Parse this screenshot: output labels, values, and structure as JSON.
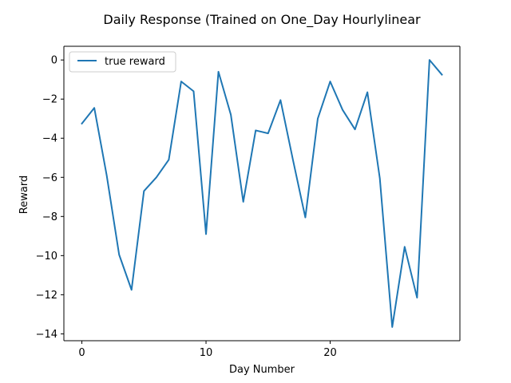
{
  "chart_data": {
    "type": "line",
    "title": "Daily Response (Trained on One_Day Hourlylinear",
    "xlabel": "Day Number",
    "ylabel": "Reward",
    "xlim": [
      -1.45,
      30.45
    ],
    "ylim": [
      -14.35,
      0.7
    ],
    "xticks": [
      0,
      10,
      20
    ],
    "yticks": [
      0,
      -2,
      -4,
      -6,
      -8,
      -10,
      -12,
      -14
    ],
    "grid": false,
    "legend_position": "top-left",
    "series": [
      {
        "name": "true reward",
        "color": "#1f77b4",
        "x": [
          0,
          1,
          2,
          3,
          4,
          5,
          6,
          7,
          8,
          9,
          10,
          11,
          12,
          13,
          14,
          15,
          16,
          17,
          18,
          19,
          20,
          21,
          22,
          23,
          24,
          25,
          26,
          27,
          28,
          29
        ],
        "y": [
          -3.25,
          -2.45,
          -5.9,
          -9.95,
          -11.75,
          -6.7,
          -6.0,
          -5.1,
          -1.1,
          -1.6,
          -8.9,
          -0.6,
          -2.8,
          -7.25,
          -3.6,
          -3.75,
          -2.05,
          -5.1,
          -8.05,
          -3.0,
          -1.1,
          -2.55,
          -3.55,
          -1.65,
          -6.05,
          -13.65,
          -9.55,
          -12.15,
          0.0,
          -0.75
        ]
      }
    ]
  }
}
